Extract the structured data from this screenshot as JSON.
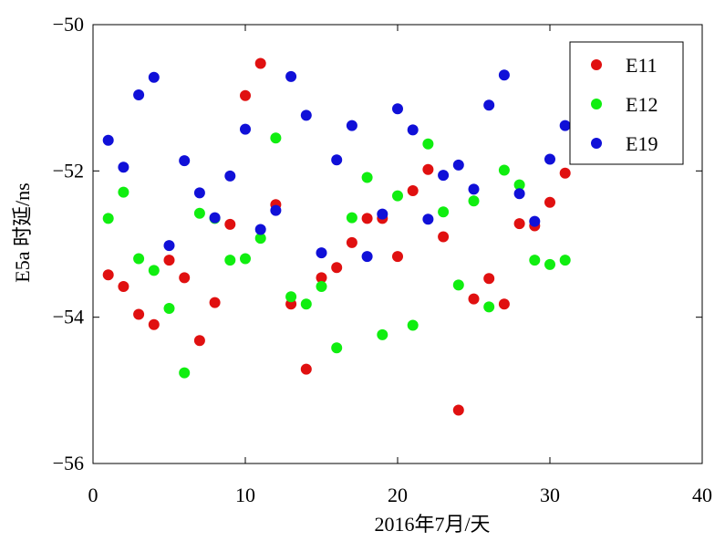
{
  "chart_data": {
    "type": "scatter",
    "xlabel": "2016年7月/天",
    "ylabel": "E5a 时延/ns",
    "xlim": [
      0,
      40
    ],
    "ylim": [
      -56,
      -50
    ],
    "xticks": [
      0,
      10,
      20,
      30,
      40
    ],
    "yticks": [
      -56,
      -54,
      -52,
      -50
    ],
    "xtick_labels": [
      "0",
      "10",
      "20",
      "30",
      "40"
    ],
    "ytick_labels": [
      "−56",
      "−54",
      "−52",
      "−50"
    ],
    "grid": false,
    "legend_position": "top-right",
    "series": [
      {
        "name": "E11",
        "color": "#e01010",
        "points": [
          [
            1,
            -53.42
          ],
          [
            2,
            -53.58
          ],
          [
            3,
            -53.96
          ],
          [
            4,
            -54.1
          ],
          [
            5,
            -53.22
          ],
          [
            6,
            -53.46
          ],
          [
            7,
            -54.32
          ],
          [
            8,
            -53.8
          ],
          [
            9,
            -52.73
          ],
          [
            10,
            -50.97
          ],
          [
            11,
            -50.53
          ],
          [
            12,
            -52.46
          ],
          [
            13,
            -53.82
          ],
          [
            14,
            -54.71
          ],
          [
            15,
            -53.46
          ],
          [
            16,
            -53.32
          ],
          [
            17,
            -52.98
          ],
          [
            18,
            -52.65
          ],
          [
            19,
            -52.65
          ],
          [
            20,
            -53.17
          ],
          [
            21,
            -52.27
          ],
          [
            22,
            -51.98
          ],
          [
            23,
            -52.9
          ],
          [
            24,
            -55.27
          ],
          [
            25,
            -53.75
          ],
          [
            26,
            -53.47
          ],
          [
            27,
            -53.82
          ],
          [
            28,
            -52.72
          ],
          [
            29,
            -52.75
          ],
          [
            30,
            -52.43
          ],
          [
            31,
            -52.03
          ]
        ]
      },
      {
        "name": "E12",
        "color": "#10ee10",
        "points": [
          [
            1,
            -52.65
          ],
          [
            2,
            -52.29
          ],
          [
            3,
            -53.2
          ],
          [
            4,
            -53.36
          ],
          [
            5,
            -53.88
          ],
          [
            6,
            -54.76
          ],
          [
            7,
            -52.58
          ],
          [
            8,
            -52.65
          ],
          [
            9,
            -53.22
          ],
          [
            10,
            -53.2
          ],
          [
            11,
            -52.92
          ],
          [
            12,
            -51.55
          ],
          [
            13,
            -53.72
          ],
          [
            14,
            -53.82
          ],
          [
            15,
            -53.58
          ],
          [
            16,
            -54.42
          ],
          [
            17,
            -52.64
          ],
          [
            18,
            -52.09
          ],
          [
            19,
            -54.24
          ],
          [
            20,
            -52.34
          ],
          [
            21,
            -54.11
          ],
          [
            22,
            -51.63
          ],
          [
            23,
            -52.56
          ],
          [
            24,
            -53.56
          ],
          [
            25,
            -52.41
          ],
          [
            26,
            -53.86
          ],
          [
            27,
            -51.99
          ],
          [
            28,
            -52.19
          ],
          [
            29,
            -53.22
          ],
          [
            30,
            -53.28
          ],
          [
            31,
            -53.22
          ]
        ]
      },
      {
        "name": "E19",
        "color": "#1010d8",
        "points": [
          [
            1,
            -51.58
          ],
          [
            2,
            -51.95
          ],
          [
            3,
            -50.96
          ],
          [
            4,
            -50.72
          ],
          [
            5,
            -53.02
          ],
          [
            6,
            -51.86
          ],
          [
            7,
            -52.3
          ],
          [
            8,
            -52.64
          ],
          [
            9,
            -52.07
          ],
          [
            10,
            -51.43
          ],
          [
            11,
            -52.8
          ],
          [
            12,
            -52.54
          ],
          [
            13,
            -50.71
          ],
          [
            14,
            -51.24
          ],
          [
            15,
            -53.12
          ],
          [
            16,
            -51.85
          ],
          [
            17,
            -51.38
          ],
          [
            18,
            -53.17
          ],
          [
            19,
            -52.59
          ],
          [
            20,
            -51.15
          ],
          [
            21,
            -51.44
          ],
          [
            22,
            -52.66
          ],
          [
            23,
            -52.06
          ],
          [
            24,
            -51.92
          ],
          [
            25,
            -52.25
          ],
          [
            26,
            -51.1
          ],
          [
            27,
            -50.69
          ],
          [
            28,
            -52.31
          ],
          [
            29,
            -52.69
          ],
          [
            30,
            -51.84
          ],
          [
            31,
            -51.38
          ]
        ]
      }
    ]
  }
}
